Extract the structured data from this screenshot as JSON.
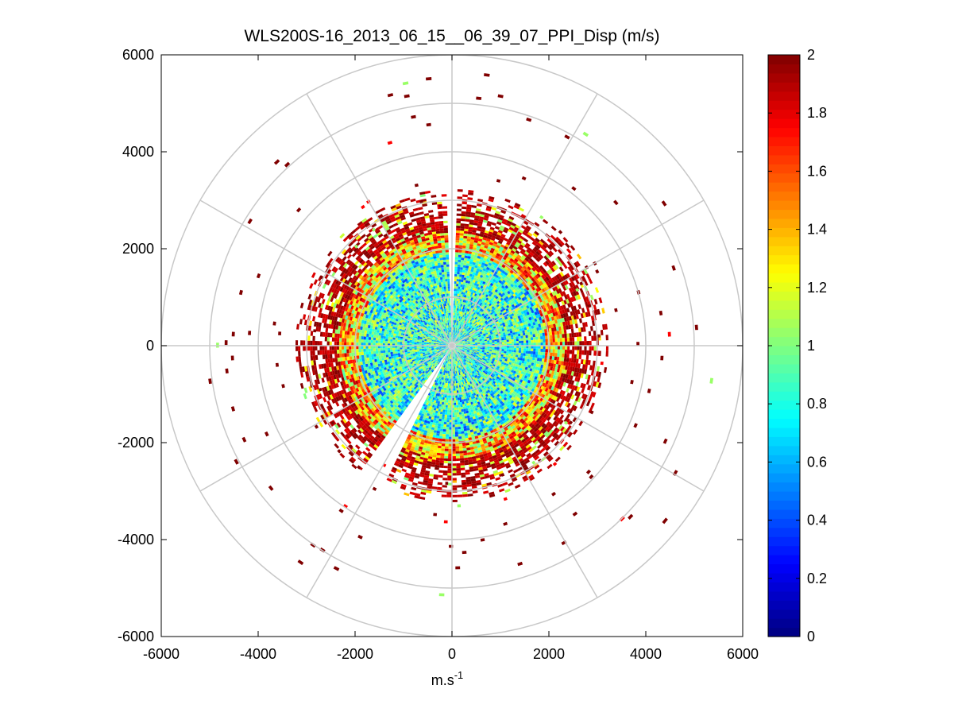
{
  "chart_data": {
    "type": "heatmap",
    "subtype": "polar-ppi-scan",
    "title": "WLS200S-16_2013_06_15__06_39_07_PPI_Disp (m/s)",
    "xlabel": "m.s",
    "xlabel_superscript": "-1",
    "ylabel": "",
    "xlim": [
      -6000,
      6000
    ],
    "ylim": [
      -6000,
      6000
    ],
    "xticks": [
      "-6000",
      "-4000",
      "-2000",
      "0",
      "2000",
      "4000",
      "6000"
    ],
    "yticks": [
      "6000",
      "4000",
      "2000",
      "0",
      "-2000",
      "-4000",
      "-6000"
    ],
    "xtick_values": [
      -6000,
      -4000,
      -2000,
      0,
      2000,
      4000,
      6000
    ],
    "ytick_values": [
      6000,
      4000,
      2000,
      0,
      -2000,
      -4000,
      -6000
    ],
    "polar_grid": {
      "ring_radii": [
        1000,
        2000,
        3000,
        4000,
        5000,
        6000
      ],
      "spoke_angles_deg": [
        0,
        30,
        60,
        90,
        120,
        150,
        180,
        210,
        240,
        270,
        300,
        330
      ],
      "grid_color": "#c8c8c8"
    },
    "colorbar": {
      "colormap": "jet",
      "range": [
        0,
        2
      ],
      "ticks": [
        "2",
        "1.8",
        "1.6",
        "1.4",
        "1.2",
        "1",
        "0.8",
        "0.6",
        "0.4",
        "0.2",
        "0"
      ],
      "tick_values": [
        2,
        1.8,
        1.6,
        1.4,
        1.2,
        1,
        0.8,
        0.6,
        0.4,
        0.2,
        0
      ]
    },
    "scan": {
      "range_max": 3200,
      "center_values": [
        0.9,
        0.55,
        1.05
      ],
      "ring_transition_range": [
        1900,
        2300
      ],
      "edge_values": [
        1.8,
        2.0
      ],
      "outlier_range": [
        2800,
        5800
      ],
      "blocked_sectors_deg": [
        [
          -2.5,
          0.5
        ],
        [
          205,
          210
        ],
        [
          212,
          215
        ]
      ]
    }
  }
}
